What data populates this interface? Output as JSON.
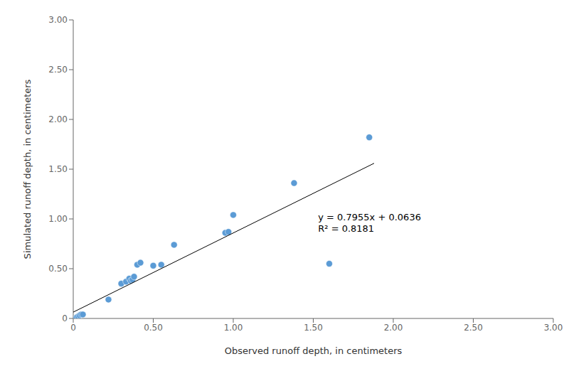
{
  "chart_data": {
    "type": "scatter",
    "xlabel": "Observed runoff depth, in centimeters",
    "ylabel": "Simulated runoff depth, in centimeters",
    "xlim": [
      0,
      3.0
    ],
    "ylim": [
      0,
      3.0
    ],
    "xticks": [
      0,
      {
        "value": 0.5,
        "label": "0.50"
      },
      {
        "value": 1.0,
        "label": "1.00"
      },
      {
        "value": 1.5,
        "label": "1.50"
      },
      {
        "value": 2.0,
        "label": "2.00"
      },
      {
        "value": 2.5,
        "label": "2.50"
      },
      {
        "value": 3.0,
        "label": "3.00"
      }
    ],
    "yticks": [
      0,
      {
        "value": 0.5,
        "label": "0.50"
      },
      {
        "value": 1.0,
        "label": "1.00"
      },
      {
        "value": 1.5,
        "label": "1.50"
      },
      {
        "value": 2.0,
        "label": "2.00"
      },
      {
        "value": 2.5,
        "label": "2.50"
      },
      {
        "value": 3.0,
        "label": "3.00"
      }
    ],
    "grid": false,
    "series": [
      {
        "type": "scatter",
        "color": "#5b9bd5",
        "x": [
          0.02,
          0.03,
          0.04,
          0.05,
          0.06,
          0.22,
          0.3,
          0.33,
          0.35,
          0.36,
          0.37,
          0.38,
          0.4,
          0.42,
          0.5,
          0.55,
          0.63,
          0.95,
          0.97,
          1.0,
          1.38,
          1.6,
          1.85
        ],
        "values": [
          0.01,
          0.02,
          0.03,
          0.04,
          0.04,
          0.19,
          0.35,
          0.37,
          0.4,
          0.38,
          0.39,
          0.42,
          0.54,
          0.56,
          0.53,
          0.54,
          0.74,
          0.86,
          0.87,
          1.04,
          1.36,
          0.55,
          1.82
        ]
      },
      {
        "type": "line",
        "color": "#000000",
        "x": [
          0.0,
          1.88
        ],
        "values": [
          0.0636,
          1.55914
        ]
      }
    ],
    "annotations": [
      {
        "text": "y = 0.7955x + 0.0636\nR² = 0.8181",
        "x": 1.53,
        "y": 1.08
      }
    ]
  }
}
